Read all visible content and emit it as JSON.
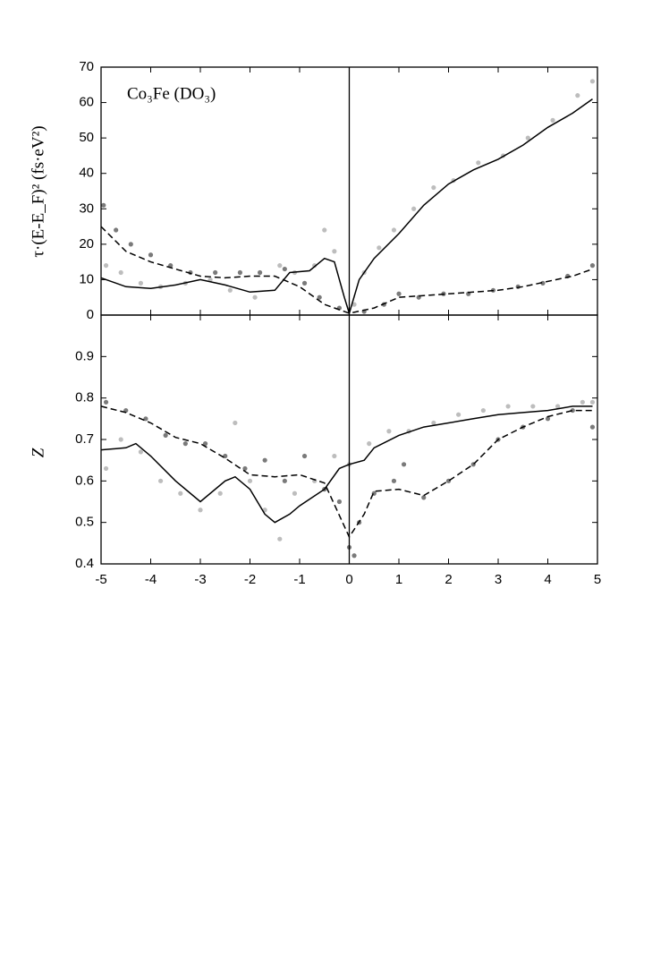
{
  "chart_data": [
    {
      "type": "line",
      "annotation": "Co₃Fe (DO₃)",
      "y_label": "τ·(E-E_F)² (fs·eV²)",
      "xlim": [
        -5,
        5
      ],
      "xticks": [
        -5,
        -4,
        -3,
        -2,
        -1,
        0,
        1,
        2,
        3,
        4,
        5
      ],
      "ylim": [
        0,
        70
      ],
      "yticks": [
        0,
        10,
        20,
        30,
        40,
        50,
        60,
        70
      ],
      "series": [
        {
          "style": "points",
          "color": "#bdbdbd",
          "x": [
            -4.9,
            -4.6,
            -4.2,
            -3.8,
            -3.3,
            -2.8,
            -2.4,
            -1.9,
            -1.4,
            -1.1,
            -0.7,
            -0.5,
            -0.3,
            0.1,
            0.3,
            0.6,
            0.9,
            1.3,
            1.7,
            2.1,
            2.6,
            3.1,
            3.6,
            4.1,
            4.6,
            4.9
          ],
          "values": [
            14,
            12,
            9,
            8,
            9,
            10,
            7,
            5,
            14,
            12,
            14,
            24,
            18,
            3,
            12,
            19,
            24,
            30,
            36,
            38,
            43,
            45,
            50,
            55,
            62,
            66
          ]
        },
        {
          "style": "points",
          "color": "#7a7a7a",
          "x": [
            -4.95,
            -4.7,
            -4.4,
            -4,
            -3.6,
            -3.2,
            -2.7,
            -2.2,
            -1.8,
            -1.3,
            -0.9,
            -0.6,
            -0.2,
            0.3,
            0.7,
            1,
            1.4,
            1.9,
            2.4,
            2.9,
            3.4,
            3.9,
            4.4,
            4.9
          ],
          "values": [
            31,
            24,
            20,
            17,
            14,
            12,
            12,
            12,
            12,
            13,
            9,
            5,
            2,
            1,
            3,
            6,
            5,
            6,
            6,
            7,
            8,
            9,
            11,
            14
          ]
        },
        {
          "style": "solid",
          "color": "#000000",
          "x": [
            -5,
            -4.5,
            -4,
            -3.5,
            -3,
            -2.5,
            -2,
            -1.5,
            -1.2,
            -0.8,
            -0.5,
            -0.3,
            -0.1,
            0,
            0.2,
            0.5,
            1,
            1.5,
            2,
            2.5,
            3,
            3.5,
            4,
            4.5,
            4.9
          ],
          "values": [
            10.5,
            8,
            7.5,
            8.5,
            10,
            8.5,
            6.5,
            7,
            12,
            12.5,
            16,
            15,
            5,
            0.5,
            10,
            16,
            23,
            31,
            37,
            41,
            44,
            48,
            53,
            57,
            61
          ]
        },
        {
          "style": "dashed",
          "color": "#000000",
          "x": [
            -5,
            -4.5,
            -4,
            -3.5,
            -3,
            -2.5,
            -2,
            -1.5,
            -1,
            -0.5,
            0,
            0.5,
            1,
            1.5,
            2,
            2.5,
            3,
            3.5,
            4,
            4.5,
            4.9
          ],
          "values": [
            25,
            18,
            15,
            13,
            11,
            10.5,
            11,
            11,
            8,
            3,
            0.5,
            2,
            5,
            5.5,
            6,
            6.5,
            7,
            8,
            9.5,
            11,
            13
          ]
        }
      ]
    },
    {
      "type": "line",
      "y_label": "Z",
      "xlim": [
        -5,
        5
      ],
      "xticks": [
        -5,
        -4,
        -3,
        -2,
        -1,
        0,
        1,
        2,
        3,
        4,
        5
      ],
      "ylim": [
        0.4,
        1.0
      ],
      "yticks": [
        0.4,
        0.5,
        0.6,
        0.7,
        0.8,
        0.9
      ],
      "series": [
        {
          "style": "points",
          "color": "#bdbdbd",
          "x": [
            -4.9,
            -4.6,
            -4.2,
            -3.8,
            -3.4,
            -3,
            -2.6,
            -2.3,
            -2,
            -1.7,
            -1.4,
            -1.1,
            -0.7,
            -0.3,
            0,
            0.4,
            0.8,
            1.2,
            1.7,
            2.2,
            2.7,
            3.2,
            3.7,
            4.2,
            4.7,
            4.9
          ],
          "values": [
            0.63,
            0.7,
            0.67,
            0.6,
            0.57,
            0.53,
            0.57,
            0.74,
            0.6,
            0.53,
            0.46,
            0.57,
            0.6,
            0.66,
            0.64,
            0.69,
            0.72,
            0.72,
            0.74,
            0.76,
            0.77,
            0.78,
            0.78,
            0.78,
            0.79,
            0.79
          ]
        },
        {
          "style": "points",
          "color": "#7a7a7a",
          "x": [
            -4.9,
            -4.5,
            -4.1,
            -3.7,
            -3.3,
            -2.9,
            -2.5,
            -2.1,
            -1.7,
            -1.3,
            -0.9,
            -0.5,
            -0.2,
            0,
            0.1,
            0.2,
            0.5,
            0.9,
            1.1,
            1.5,
            2,
            2.5,
            3,
            3.5,
            4,
            4.5,
            4.9
          ],
          "values": [
            0.79,
            0.77,
            0.75,
            0.71,
            0.69,
            0.69,
            0.66,
            0.63,
            0.65,
            0.6,
            0.66,
            0.58,
            0.55,
            0.44,
            0.42,
            0.5,
            0.57,
            0.6,
            0.64,
            0.56,
            0.6,
            0.64,
            0.7,
            0.73,
            0.75,
            0.77,
            0.73
          ]
        },
        {
          "style": "solid",
          "color": "#000000",
          "x": [
            -5,
            -4.5,
            -4.3,
            -4,
            -3.5,
            -3,
            -2.5,
            -2.3,
            -2,
            -1.7,
            -1.5,
            -1.2,
            -1,
            -0.5,
            -0.2,
            0,
            0.3,
            0.5,
            1,
            1.5,
            2,
            2.5,
            3,
            3.5,
            4,
            4.5,
            4.9
          ],
          "values": [
            0.675,
            0.68,
            0.69,
            0.66,
            0.6,
            0.55,
            0.6,
            0.61,
            0.58,
            0.52,
            0.5,
            0.52,
            0.54,
            0.58,
            0.63,
            0.64,
            0.65,
            0.68,
            0.71,
            0.73,
            0.74,
            0.75,
            0.76,
            0.765,
            0.77,
            0.78,
            0.78
          ]
        },
        {
          "style": "dashed",
          "color": "#000000",
          "x": [
            -5,
            -4.5,
            -4,
            -3.5,
            -3,
            -2.5,
            -2,
            -1.5,
            -1,
            -0.5,
            0,
            0.3,
            0.5,
            1,
            1.5,
            2,
            2.5,
            3,
            3.5,
            4,
            4.5,
            4.9
          ],
          "values": [
            0.78,
            0.765,
            0.74,
            0.705,
            0.69,
            0.655,
            0.615,
            0.61,
            0.615,
            0.595,
            0.465,
            0.52,
            0.575,
            0.58,
            0.565,
            0.6,
            0.64,
            0.7,
            0.73,
            0.755,
            0.77,
            0.77
          ]
        }
      ]
    }
  ]
}
